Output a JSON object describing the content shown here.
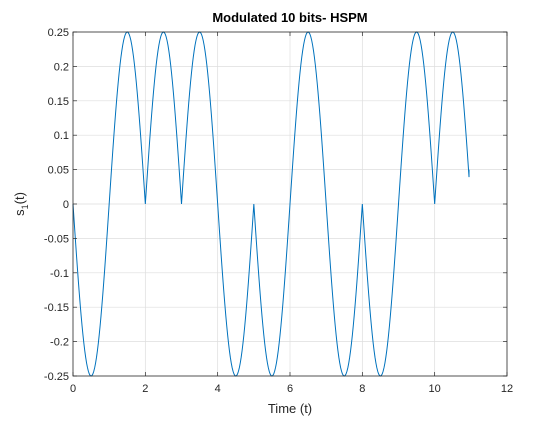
{
  "chart_data": {
    "type": "line",
    "title": "Modulated 10 bits- HSPM",
    "xlabel": "Time (t)",
    "ylabel": "s",
    "ylabel_subscript": "1",
    "ylabel_suffix": "(t)",
    "xlim": [
      0,
      12
    ],
    "ylim": [
      -0.25,
      0.25
    ],
    "xticks": [
      0,
      2,
      4,
      6,
      8,
      10,
      12
    ],
    "yticks": [
      -0.25,
      -0.2,
      -0.15,
      -0.1,
      -0.05,
      0,
      0.05,
      0.1,
      0.15,
      0.2,
      0.25
    ],
    "ytick_labels": [
      "-0.25",
      "-0.2",
      "-0.15",
      "-0.1",
      "-0.05",
      "0",
      "0.05",
      "0.1",
      "0.15",
      "0.2",
      "0.25"
    ],
    "grid": true,
    "line_color": "#0072BD",
    "series": [
      {
        "bit_half_sines": [
          {
            "t_start": 0,
            "t_end": 1,
            "sign": -1
          },
          {
            "t_start": 1,
            "t_end": 2,
            "sign": 1
          },
          {
            "t_start": 2,
            "t_end": 3,
            "sign": 1
          },
          {
            "t_start": 3,
            "t_end": 4,
            "sign": 1
          },
          {
            "t_start": 4,
            "t_end": 5,
            "sign": -1
          },
          {
            "t_start": 5,
            "t_end": 6,
            "sign": -1
          },
          {
            "t_start": 6,
            "t_end": 7,
            "sign": 1
          },
          {
            "t_start": 7,
            "t_end": 8,
            "sign": -1
          },
          {
            "t_start": 8,
            "t_end": 9,
            "sign": -1
          },
          {
            "t_start": 9,
            "t_end": 10,
            "sign": 1
          },
          {
            "t_start": 10,
            "t_end": 11,
            "sign": 1
          }
        ],
        "amplitude": 0.25,
        "t_end": 10.95,
        "end_value": 0.05
      }
    ]
  }
}
